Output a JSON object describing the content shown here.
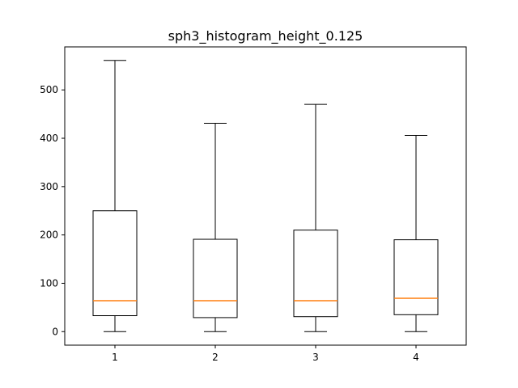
{
  "chart_data": {
    "type": "box",
    "title": "sph3_histogram_height_0.125",
    "xlabel": "",
    "ylabel": "",
    "categories": [
      "1",
      "2",
      "3",
      "4"
    ],
    "boxes": [
      {
        "label": "1",
        "whisker_low": 0,
        "q1": 33,
        "median": 64,
        "q3": 250,
        "whisker_high": 561
      },
      {
        "label": "2",
        "whisker_low": 0,
        "q1": 29,
        "median": 64,
        "q3": 191,
        "whisker_high": 431
      },
      {
        "label": "3",
        "whisker_low": 0,
        "q1": 31,
        "median": 64,
        "q3": 210,
        "whisker_high": 470
      },
      {
        "label": "4",
        "whisker_low": 0,
        "q1": 35,
        "median": 69,
        "q3": 190,
        "whisker_high": 406
      }
    ],
    "ylim": [
      -28,
      589
    ],
    "yticks": [
      0,
      100,
      200,
      300,
      400,
      500
    ],
    "grid": false,
    "colors": {
      "box": "#000000",
      "median": "#ff7f0e"
    }
  }
}
